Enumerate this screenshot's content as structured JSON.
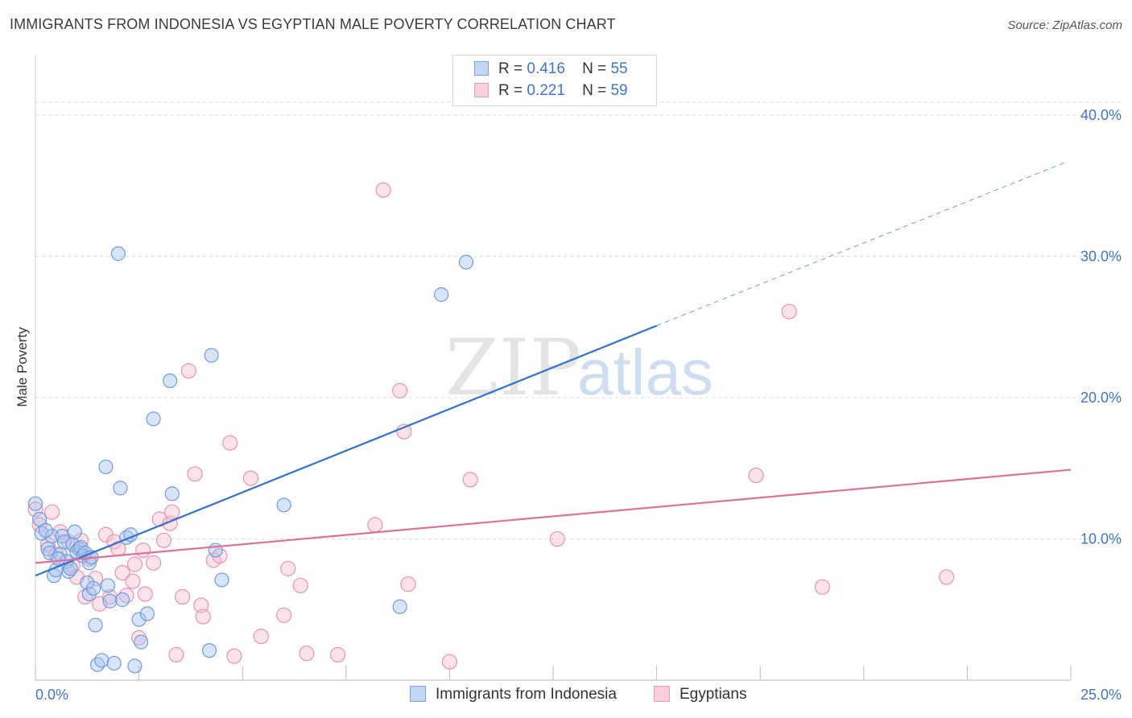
{
  "header": {
    "title": "IMMIGRANTS FROM INDONESIA VS EGYPTIAN MALE POVERTY CORRELATION CHART",
    "source": "Source: ZipAtlas.com"
  },
  "watermark": {
    "zip": "ZIP",
    "atlas": "atlas"
  },
  "legend": {
    "series1": {
      "r_label": "R =",
      "r_value": "0.416",
      "n_label": "N =",
      "n_value": "55"
    },
    "series2": {
      "r_label": "R =",
      "r_value": "0.221",
      "n_label": "N =",
      "n_value": "59"
    }
  },
  "bottom_legend": {
    "series1": "Immigrants from Indonesia",
    "series2": "Egyptians"
  },
  "colors": {
    "blue_fill": "#a9c4ee",
    "blue_stroke": "#6f9be0",
    "blue_line": "#2f72d0",
    "pink_fill": "#f7c0d2",
    "pink_stroke": "#ec8fb0",
    "pink_line": "#e0709a",
    "accent_text": "#3e74c9",
    "grid": "#dcdcdc"
  },
  "chart_data": {
    "type": "scatter",
    "title": "IMMIGRANTS FROM INDONESIA VS EGYPTIAN MALE POVERTY CORRELATION CHART",
    "xlabel": "",
    "ylabel": "Male Poverty",
    "xlim": [
      0,
      25
    ],
    "ylim": [
      0,
      40
    ],
    "x_tick_labels": [
      "0.0%",
      "25.0%"
    ],
    "y_ticks": [
      10,
      20,
      30,
      40
    ],
    "y_tick_labels": [
      "10.0%",
      "20.0%",
      "30.0%",
      "40.0%"
    ],
    "grid": true,
    "legend_position": "top-center",
    "series": [
      {
        "name": "Immigrants from Indonesia",
        "r": 0.416,
        "n": 55,
        "trend": {
          "x0": 0,
          "y0": 7.4,
          "x1": 15.0,
          "y1": 25.1,
          "dash_x1": 24.9,
          "dash_y1": 36.7
        },
        "points": [
          [
            0.0,
            12.5
          ],
          [
            0.1,
            11.4
          ],
          [
            0.15,
            10.4
          ],
          [
            0.3,
            9.3
          ],
          [
            0.4,
            10.2
          ],
          [
            0.35,
            9.0
          ],
          [
            0.45,
            7.4
          ],
          [
            0.5,
            7.8
          ],
          [
            0.6,
            8.9
          ],
          [
            0.65,
            10.2
          ],
          [
            0.7,
            9.8
          ],
          [
            0.75,
            8.4
          ],
          [
            0.8,
            7.7
          ],
          [
            0.9,
            9.6
          ],
          [
            0.95,
            10.5
          ],
          [
            1.0,
            9.1
          ],
          [
            1.05,
            9.3
          ],
          [
            1.1,
            9.4
          ],
          [
            1.15,
            8.8
          ],
          [
            1.3,
            8.3
          ],
          [
            1.25,
            6.9
          ],
          [
            1.3,
            6.1
          ],
          [
            1.4,
            6.5
          ],
          [
            1.45,
            3.9
          ],
          [
            1.5,
            1.1
          ],
          [
            1.6,
            1.4
          ],
          [
            1.7,
            15.1
          ],
          [
            1.75,
            6.7
          ],
          [
            1.8,
            5.6
          ],
          [
            1.9,
            1.2
          ],
          [
            2.0,
            30.2
          ],
          [
            2.05,
            13.6
          ],
          [
            2.1,
            5.7
          ],
          [
            2.2,
            10.1
          ],
          [
            2.3,
            10.3
          ],
          [
            2.4,
            1.0
          ],
          [
            2.5,
            4.3
          ],
          [
            2.55,
            2.7
          ],
          [
            2.7,
            4.7
          ],
          [
            2.85,
            18.5
          ],
          [
            3.25,
            21.2
          ],
          [
            3.3,
            13.2
          ],
          [
            4.2,
            2.1
          ],
          [
            4.25,
            23.0
          ],
          [
            4.35,
            9.2
          ],
          [
            4.5,
            7.1
          ],
          [
            6.0,
            12.4
          ],
          [
            8.8,
            5.2
          ],
          [
            9.8,
            27.3
          ],
          [
            10.4,
            29.6
          ],
          [
            0.55,
            8.6
          ],
          [
            1.2,
            9.0
          ],
          [
            0.85,
            7.9
          ],
          [
            1.35,
            8.7
          ],
          [
            0.25,
            10.6
          ]
        ]
      },
      {
        "name": "Egyptians",
        "r": 0.221,
        "n": 59,
        "trend": {
          "x0": 0,
          "y0": 8.3,
          "x1": 25.0,
          "y1": 14.9
        },
        "points": [
          [
            0.0,
            12.1
          ],
          [
            0.1,
            11.0
          ],
          [
            0.4,
            11.9
          ],
          [
            0.3,
            9.6
          ],
          [
            0.5,
            8.9
          ],
          [
            0.6,
            10.5
          ],
          [
            0.8,
            9.8
          ],
          [
            0.9,
            8.1
          ],
          [
            1.0,
            7.3
          ],
          [
            1.1,
            9.9
          ],
          [
            1.3,
            8.6
          ],
          [
            1.45,
            7.2
          ],
          [
            1.55,
            5.4
          ],
          [
            1.7,
            10.3
          ],
          [
            1.8,
            5.9
          ],
          [
            1.9,
            9.8
          ],
          [
            2.0,
            9.3
          ],
          [
            2.1,
            7.6
          ],
          [
            2.2,
            6.0
          ],
          [
            2.4,
            8.2
          ],
          [
            2.5,
            3.0
          ],
          [
            2.6,
            9.2
          ],
          [
            2.65,
            6.1
          ],
          [
            2.85,
            8.3
          ],
          [
            3.0,
            11.4
          ],
          [
            3.1,
            9.9
          ],
          [
            3.25,
            11.1
          ],
          [
            3.3,
            11.9
          ],
          [
            3.4,
            1.8
          ],
          [
            3.55,
            5.9
          ],
          [
            3.7,
            21.9
          ],
          [
            3.85,
            14.6
          ],
          [
            4.0,
            5.3
          ],
          [
            4.05,
            4.5
          ],
          [
            4.3,
            8.5
          ],
          [
            4.45,
            8.8
          ],
          [
            4.7,
            16.8
          ],
          [
            4.8,
            1.7
          ],
          [
            5.2,
            14.3
          ],
          [
            5.45,
            3.1
          ],
          [
            6.0,
            4.6
          ],
          [
            6.1,
            7.9
          ],
          [
            6.4,
            6.7
          ],
          [
            6.55,
            1.9
          ],
          [
            7.3,
            1.8
          ],
          [
            8.2,
            11.0
          ],
          [
            8.4,
            34.7
          ],
          [
            8.8,
            20.5
          ],
          [
            8.9,
            17.6
          ],
          [
            9.0,
            6.8
          ],
          [
            10.0,
            1.3
          ],
          [
            10.5,
            14.2
          ],
          [
            12.6,
            10.0
          ],
          [
            17.4,
            14.5
          ],
          [
            18.2,
            26.1
          ],
          [
            19.0,
            6.6
          ],
          [
            22.0,
            7.3
          ],
          [
            1.2,
            5.9
          ],
          [
            2.35,
            7.0
          ]
        ]
      }
    ]
  }
}
